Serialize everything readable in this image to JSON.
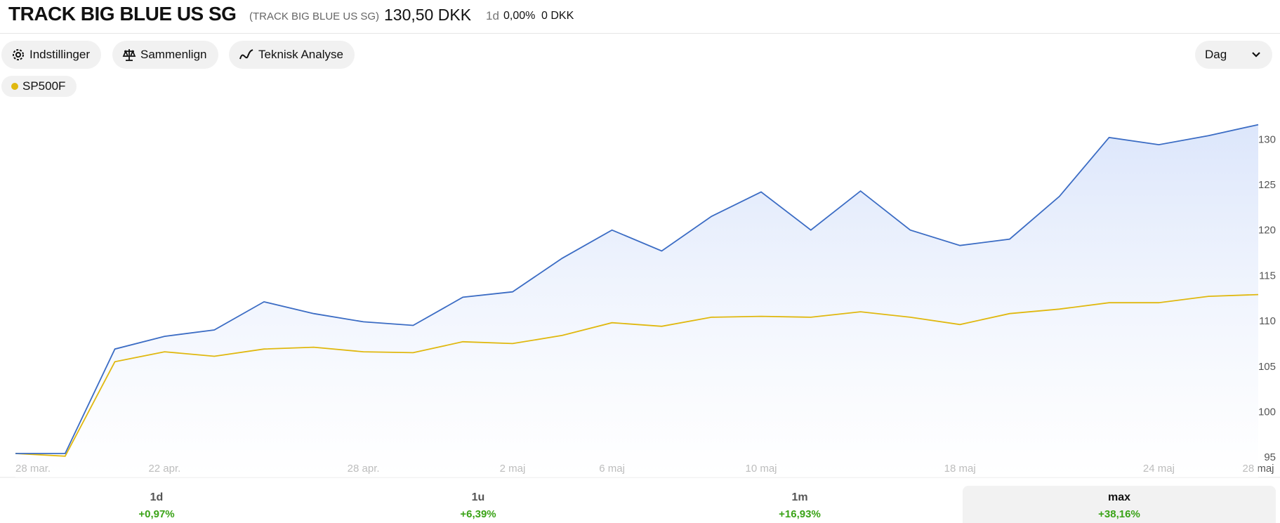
{
  "header": {
    "title": "TRACK BIG BLUE US SG",
    "subtitle": "(TRACK BIG BLUE US SG)",
    "price": "130,50 DKK",
    "period": "1d",
    "change_pct": "0,00%",
    "change_abs": "0 DKK"
  },
  "toolbar": {
    "settings": "Indstillinger",
    "compare": "Sammenlign",
    "technical": "Teknisk Analyse",
    "interval": "Dag"
  },
  "chart_data": {
    "type": "line",
    "categories": [
      "28 mar.",
      null,
      null,
      "22 apr.",
      null,
      null,
      null,
      "28 apr.",
      null,
      null,
      "2 maj",
      null,
      "6 maj",
      null,
      null,
      "10 maj",
      null,
      null,
      null,
      "18 maj",
      null,
      null,
      null,
      "24 maj",
      null,
      "28 maj"
    ],
    "series": [
      {
        "color": "#3b6cc4",
        "values": [
          95.4,
          95.4,
          106.9,
          108.3,
          109.0,
          112.1,
          110.8,
          109.9,
          109.5,
          112.6,
          113.2,
          116.9,
          120.0,
          117.7,
          121.5,
          124.2,
          120.0,
          124.3,
          120.0,
          118.3,
          119.0,
          123.7,
          130.2,
          129.4,
          130.4,
          131.6
        ]
      },
      {
        "name": "SP500F",
        "color": "#e0b80f",
        "values": [
          95.4,
          95.1,
          105.5,
          106.6,
          106.1,
          106.9,
          107.1,
          106.6,
          106.5,
          107.7,
          107.5,
          108.4,
          109.8,
          109.4,
          110.4,
          110.5,
          110.4,
          111.0,
          110.4,
          109.6,
          110.8,
          111.3,
          112.0,
          112.0,
          112.7,
          112.9
        ]
      }
    ],
    "ylim": [
      93,
      134
    ],
    "yticks": [
      95,
      100,
      105,
      110,
      115,
      120,
      125,
      130
    ],
    "grid": false
  },
  "periods": [
    {
      "label": "1d",
      "change": "+0,97%"
    },
    {
      "label": "1u",
      "change": "+6,39%"
    },
    {
      "label": "1m",
      "change": "+16,93%"
    },
    {
      "label": "max",
      "change": "+38,16%"
    }
  ]
}
